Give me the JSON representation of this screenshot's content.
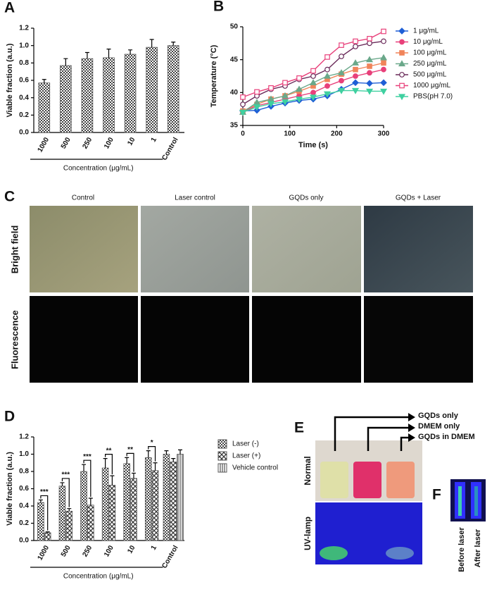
{
  "chart_data": [
    {
      "type": "bar",
      "panel": "A",
      "ylabel": "Viable fraction (a.u.)",
      "xlabel": "Concentration (μg/mL)",
      "categories": [
        "1000",
        "500",
        "250",
        "100",
        "10",
        "1",
        "Control"
      ],
      "values": [
        0.57,
        0.77,
        0.85,
        0.86,
        0.9,
        0.98,
        1.0
      ],
      "errors": [
        0.04,
        0.08,
        0.07,
        0.1,
        0.05,
        0.09,
        0.04
      ],
      "color": "#555555",
      "ylim": [
        0,
        1.2
      ],
      "yticks": [
        {
          "value": 0,
          "label": "0.0"
        },
        0.2,
        0.4,
        0.6,
        0.8,
        {
          "value": 1,
          "label": "1.0"
        },
        1.2
      ]
    },
    {
      "type": "line",
      "panel": "B",
      "ylabel": "Temperature (°C)",
      "xlabel": "Time (s)",
      "x": [
        0,
        30,
        60,
        90,
        120,
        150,
        180,
        210,
        240,
        270,
        300
      ],
      "series": [
        {
          "name": "1 μg/mL",
          "color": "#1f5fd6",
          "marker": "diamond",
          "values": [
            37.2,
            37.3,
            37.9,
            38.4,
            38.8,
            39.0,
            39.5,
            40.5,
            41.5,
            41.4,
            41.5
          ]
        },
        {
          "name": "10 μg/mL",
          "color": "#e8407a",
          "marker": "circle",
          "values": [
            37.1,
            38.0,
            38.5,
            39.0,
            39.5,
            40.0,
            41.0,
            41.8,
            42.5,
            43.0,
            43.5
          ]
        },
        {
          "name": "100 μg/mL",
          "color": "#f0845a",
          "marker": "square",
          "values": [
            37.2,
            38.2,
            39.0,
            39.5,
            40.2,
            41.0,
            42.0,
            42.8,
            43.5,
            44.0,
            44.5
          ]
        },
        {
          "name": "250 μg/mL",
          "color": "#6aa88a",
          "marker": "triangle",
          "values": [
            37.0,
            38.5,
            39.0,
            39.5,
            40.5,
            41.5,
            42.5,
            43.0,
            44.5,
            45.0,
            45.3
          ]
        },
        {
          "name": "500 μg/mL",
          "color": "#6a2a5a",
          "marker": "circle-open",
          "values": [
            38.2,
            39.5,
            40.5,
            41.0,
            42.0,
            42.5,
            43.5,
            45.5,
            47.0,
            47.5,
            47.8
          ]
        },
        {
          "name": "1000 μg/mL",
          "color": "#e8407a",
          "marker": "square-open",
          "values": [
            39.3,
            40.1,
            40.7,
            41.5,
            42.2,
            43.3,
            45.4,
            47.2,
            47.8,
            48.2,
            49.3
          ]
        },
        {
          "name": "PBS(pH 7.0)",
          "color": "#3fd0a0",
          "marker": "triangle-down",
          "values": [
            37.0,
            37.8,
            38.3,
            38.6,
            39.0,
            39.3,
            39.8,
            40.3,
            40.3,
            40.2,
            40.2
          ]
        }
      ],
      "xlim": [
        0,
        300
      ],
      "xticks": [
        0,
        100,
        200,
        300
      ],
      "ylim": [
        35,
        50
      ],
      "yticks": [
        35,
        40,
        45,
        50
      ]
    },
    {
      "type": "bar",
      "panel": "D",
      "ylabel": "Viable fraction (a.u.)",
      "xlabel": "Concentration (μg/mL)",
      "categories": [
        "1000",
        "500",
        "250",
        "100",
        "10",
        "1",
        "Control"
      ],
      "series": [
        {
          "name": "Laser (-)",
          "color": "#555555",
          "values": [
            0.44,
            0.63,
            0.8,
            0.84,
            0.89,
            0.96,
            1.0
          ],
          "errors": [
            0.03,
            0.04,
            0.08,
            0.11,
            0.07,
            0.08,
            0.04
          ]
        },
        {
          "name": "Laser (+)",
          "color": "#555555",
          "values": [
            0.09,
            0.34,
            0.41,
            0.64,
            0.72,
            0.81,
            0.91
          ],
          "errors": [
            0.01,
            0.03,
            0.08,
            0.11,
            0.06,
            0.09,
            0.04
          ]
        },
        {
          "name": "Vehicle control",
          "color": "#555555",
          "values": [
            null,
            null,
            null,
            null,
            null,
            null,
            1.0
          ],
          "errors": [
            null,
            null,
            null,
            null,
            null,
            null,
            0.05
          ]
        }
      ],
      "significance": [
        "***",
        "***",
        "***",
        "**",
        "**",
        "*",
        null
      ],
      "ylim": [
        0,
        1.2
      ],
      "yticks": [
        {
          "value": 0,
          "label": "0.0"
        },
        0.2,
        0.4,
        0.6,
        0.8,
        {
          "value": 1,
          "label": "1.0"
        },
        1.2
      ]
    }
  ],
  "panel_c": {
    "panel": "C",
    "columns": [
      "Control",
      "Laser control",
      "GQDs only",
      "GQDs + Laser"
    ],
    "rows": [
      "Bright field",
      "Fluorescence"
    ]
  },
  "panel_e": {
    "panel": "E",
    "labels": [
      "GQDs only",
      "DMEM only",
      "GQDs in DMEM"
    ],
    "rows": [
      "Normal",
      "UV-lamp"
    ]
  },
  "panel_f": {
    "panel": "F",
    "labels": [
      "Before laser",
      "After laser"
    ]
  }
}
